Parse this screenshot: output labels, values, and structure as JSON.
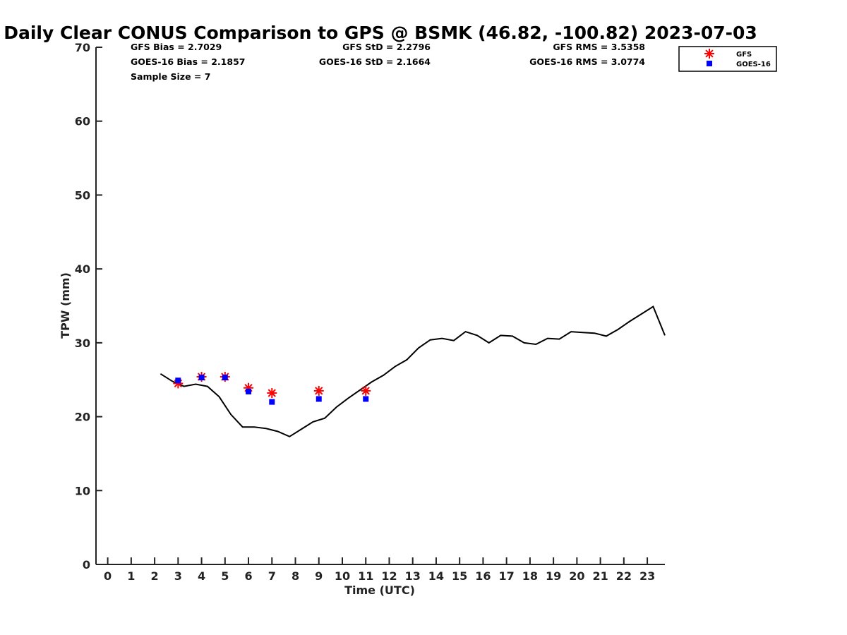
{
  "chart_data": {
    "type": "line",
    "title": "Daily Clear CONUS Comparison to GPS @ BSMK (46.82, -100.82) 2023-07-03",
    "xlabel": "Time (UTC)",
    "ylabel": "TPW (mm)",
    "xlim": [
      -0.5,
      23.75
    ],
    "ylim": [
      0,
      70
    ],
    "x_ticks": [
      "0",
      "1",
      "2",
      "3",
      "4",
      "5",
      "6",
      "7",
      "8",
      "9",
      "10",
      "11",
      "12",
      "13",
      "14",
      "15",
      "16",
      "17",
      "18",
      "19",
      "20",
      "21",
      "22",
      "23"
    ],
    "y_ticks": [
      "0",
      "10",
      "20",
      "30",
      "40",
      "50",
      "60",
      "70"
    ],
    "grid": false,
    "legend_position": "top-right",
    "stats": {
      "gfs_bias": "GFS Bias = 2.7029",
      "goes_bias": "GOES-16 Bias = 2.1857",
      "sample_size": "Sample Size = 7",
      "gfs_std": "GFS StD = 2.2796",
      "goes_std": "GOES-16 StD = 2.1664",
      "gfs_rms": "GFS RMS = 3.5358",
      "goes_rms": "GOES-16 RMS = 3.0774"
    },
    "series": [
      {
        "type": "line",
        "color": "#000000",
        "x": [
          2.25,
          2.75,
          3.25,
          3.75,
          4.25,
          4.75,
          5.25,
          5.75,
          6.25,
          6.75,
          7.25,
          7.75,
          8.25,
          8.75,
          9.25,
          9.75,
          10.25,
          10.75,
          11.25,
          11.75,
          12.25,
          12.75,
          13.25,
          13.75,
          14.25,
          14.75,
          15.25,
          15.75,
          16.25,
          16.75,
          17.25,
          17.75,
          18.25,
          18.75,
          19.25,
          19.75,
          20.25,
          20.75,
          21.25,
          21.75,
          22.25,
          22.75,
          23.25,
          23.75
        ],
        "values": [
          25.8,
          24.8,
          24.1,
          24.4,
          24.1,
          22.7,
          20.3,
          18.6,
          18.6,
          18.4,
          18.0,
          17.3,
          18.3,
          19.3,
          19.8,
          21.3,
          22.5,
          23.6,
          24.7,
          25.6,
          26.8,
          27.7,
          29.3,
          30.4,
          30.6,
          30.3,
          31.5,
          31.0,
          30.0,
          31.0,
          30.9,
          30.0,
          29.8,
          30.6,
          30.5,
          31.5,
          31.4,
          31.3,
          30.9,
          31.8,
          32.9,
          33.9,
          34.9,
          31.0
        ]
      },
      {
        "name": "GFS",
        "type": "scatter",
        "marker": "asterisk",
        "color": "#ff0000",
        "x": [
          3,
          4,
          5,
          6,
          7,
          9,
          11
        ],
        "values": [
          24.5,
          25.4,
          25.4,
          23.9,
          23.2,
          23.5,
          23.5
        ]
      },
      {
        "name": "GOES-16",
        "type": "scatter",
        "marker": "square",
        "color": "#0000ff",
        "x": [
          3,
          4,
          5,
          6,
          7,
          9,
          11
        ],
        "values": [
          24.9,
          25.3,
          25.3,
          23.4,
          22.0,
          22.4,
          22.4
        ]
      }
    ]
  }
}
